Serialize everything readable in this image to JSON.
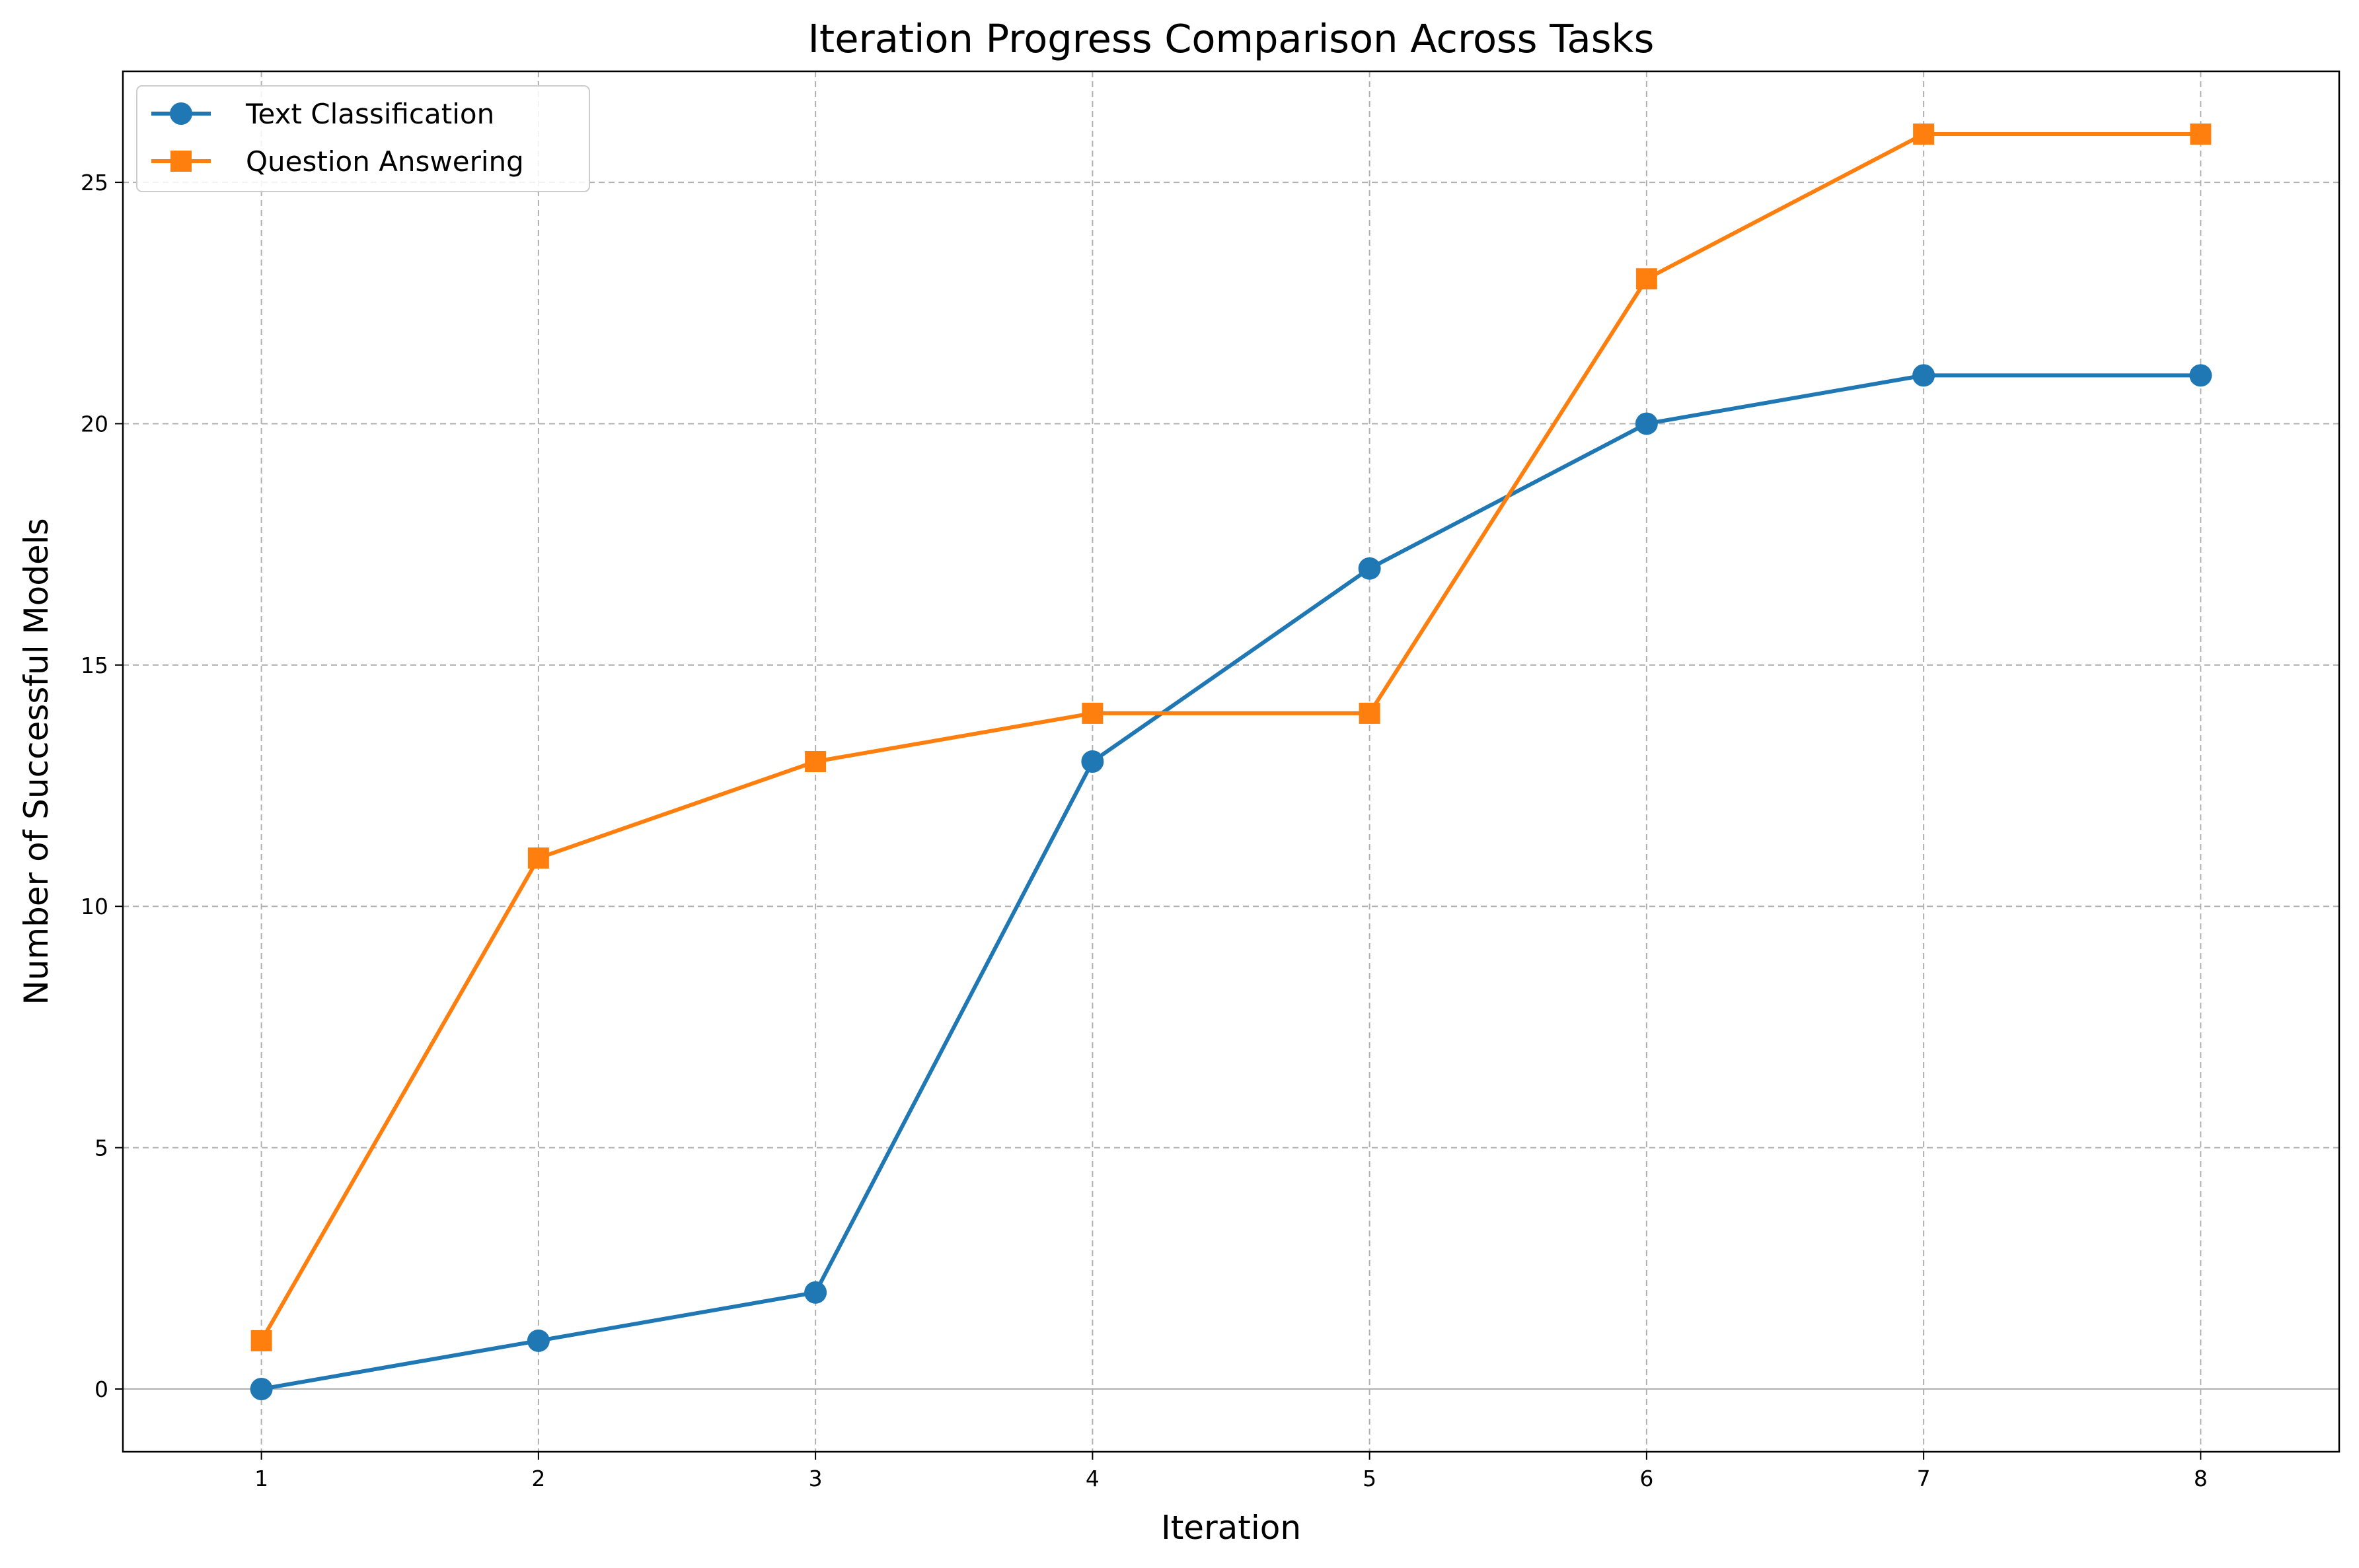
{
  "chart_data": {
    "type": "line",
    "title": "Iteration Progress Comparison Across Tasks",
    "xlabel": "Iteration",
    "ylabel": "Number of Successful Models",
    "x": [
      1,
      2,
      3,
      4,
      5,
      6,
      7,
      8
    ],
    "xticks": [
      "1",
      "2",
      "3",
      "4",
      "5",
      "6",
      "7",
      "8"
    ],
    "yticks": [
      "0",
      "5",
      "10",
      "15",
      "20",
      "25"
    ],
    "xlim": [
      0.5,
      8.5
    ],
    "ylim": [
      -1.3,
      27.3
    ],
    "grid": true,
    "legend_position": "top-left",
    "series": [
      {
        "name": "Text Classification",
        "values": [
          0,
          1,
          2,
          13,
          17,
          20,
          21,
          21
        ],
        "color": "#1f77b4",
        "marker": "circle"
      },
      {
        "name": "Question Answering",
        "values": [
          1,
          11,
          13,
          14,
          14,
          23,
          26,
          26
        ],
        "color": "#ff7f0e",
        "marker": "square"
      }
    ]
  }
}
